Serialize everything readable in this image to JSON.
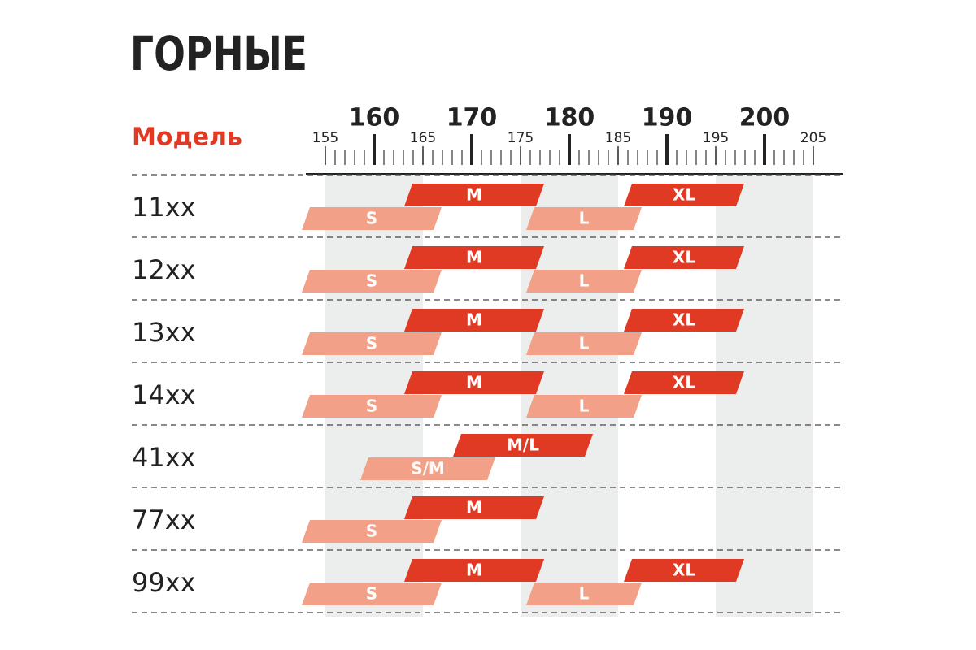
{
  "chart_data": {
    "type": "range",
    "title": "ГОРНЫЕ",
    "row_header": "Модель",
    "xlim": [
      153,
      208
    ],
    "xticks": [
      155,
      160,
      165,
      170,
      175,
      180,
      185,
      190,
      195,
      200,
      205
    ],
    "xticks_minor": [
      155,
      156,
      157,
      158,
      159,
      160,
      161,
      162,
      163,
      164,
      165,
      166,
      167,
      168,
      169,
      170,
      171,
      172,
      173,
      174,
      175,
      176,
      177,
      178,
      179,
      180,
      181,
      182,
      183,
      184,
      185,
      186,
      187,
      188,
      189,
      190,
      191,
      192,
      193,
      194,
      195,
      196,
      197,
      198,
      199,
      200,
      201,
      202,
      203,
      204,
      205
    ],
    "colors": [
      "#f2a087",
      "#e13a24"
    ],
    "rows": [
      {
        "model": "11xx",
        "sizes": [
          {
            "name": "S",
            "range": [
              153,
              166.5
            ]
          },
          {
            "name": "M",
            "range": [
              163.5,
              177
            ]
          },
          {
            "name": "L",
            "range": [
              176,
              187
            ]
          },
          {
            "name": "XL",
            "range": [
              186,
              197.5
            ]
          }
        ]
      },
      {
        "model": "12xx",
        "sizes": [
          {
            "name": "S",
            "range": [
              153,
              166.5
            ]
          },
          {
            "name": "M",
            "range": [
              163.5,
              177
            ]
          },
          {
            "name": "L",
            "range": [
              176,
              187
            ]
          },
          {
            "name": "XL",
            "range": [
              186,
              197.5
            ]
          }
        ]
      },
      {
        "model": "13xx",
        "sizes": [
          {
            "name": "S",
            "range": [
              153,
              166.5
            ]
          },
          {
            "name": "M",
            "range": [
              163.5,
              177
            ]
          },
          {
            "name": "L",
            "range": [
              176,
              187
            ]
          },
          {
            "name": "XL",
            "range": [
              186,
              197.5
            ]
          }
        ]
      },
      {
        "model": "14xx",
        "sizes": [
          {
            "name": "S",
            "range": [
              153,
              166.5
            ]
          },
          {
            "name": "M",
            "range": [
              163.5,
              177
            ]
          },
          {
            "name": "L",
            "range": [
              176,
              187
            ]
          },
          {
            "name": "XL",
            "range": [
              186,
              197.5
            ]
          }
        ]
      },
      {
        "model": "41xx",
        "sizes": [
          {
            "name": "S/M",
            "range": [
              159,
              172
            ]
          },
          {
            "name": "M/L",
            "range": [
              168.5,
              182
            ]
          }
        ]
      },
      {
        "model": "77xx",
        "sizes": [
          {
            "name": "S",
            "range": [
              153,
              166.5
            ]
          },
          {
            "name": "M",
            "range": [
              163.5,
              177
            ]
          }
        ]
      },
      {
        "model": "99xx",
        "sizes": [
          {
            "name": "S",
            "range": [
              153,
              166.5
            ]
          },
          {
            "name": "M",
            "range": [
              163.5,
              177
            ]
          },
          {
            "name": "L",
            "range": [
              176,
              187
            ]
          },
          {
            "name": "XL",
            "range": [
              186,
              197.5
            ]
          }
        ]
      }
    ]
  }
}
